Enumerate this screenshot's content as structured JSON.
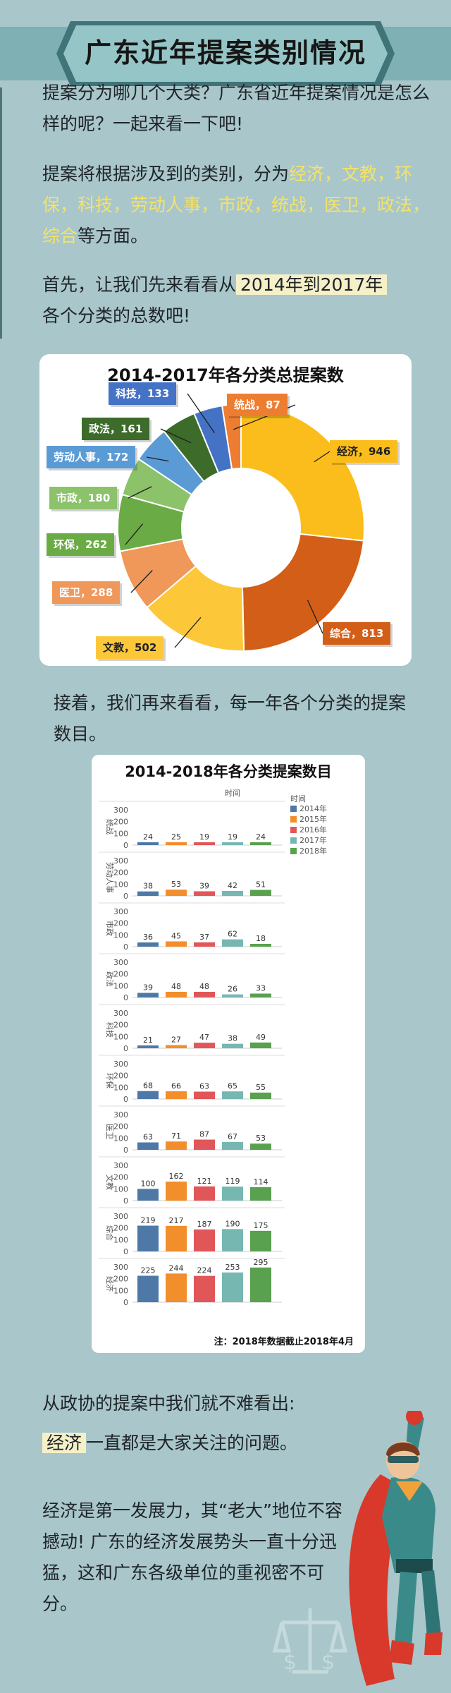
{
  "header": {
    "title": "广东近年提案类别情况"
  },
  "intro": {
    "p1": "提案分为哪几个大类？广东省近年提案情况是怎么样的呢？一起来看一下吧!",
    "p2_prefix": "提案将根据涉及到的类别，分为",
    "p2_categories": "经济，文教，环保，科技，劳动人事，市政，统战，医卫，政法，综合",
    "p2_suffix": "等方面。",
    "p3_a": "首先，让我们先来看看从",
    "p3_b": "2014年到2017年",
    "p3_c": "各个分类的总数吧!"
  },
  "mid": {
    "p": "接着，我们再来看看，每一年各个分类的提案数目。"
  },
  "outro": {
    "p1": "从政协的提案中我们就不难看出:",
    "p2_a": "经济",
    "p2_b": "一直都是大家关注的问题。",
    "p3": "经济是第一发展力，其“老大”地位不容撼动! 广东的经济发展势头一直十分迅猛，这和广东各级单位的重视密不可分。"
  },
  "chart_data": [
    {
      "type": "pie",
      "title": "2014-2017年各分类总提案数",
      "slices": [
        {
          "label": "经济",
          "value": 946,
          "color": "#fbbd1b",
          "tag": "经济，946"
        },
        {
          "label": "综合",
          "value": 813,
          "color": "#d25e17",
          "tag": "综合，813"
        },
        {
          "label": "文教",
          "value": 502,
          "color": "#fdc73a",
          "tag": "文教，502"
        },
        {
          "label": "医卫",
          "value": 288,
          "color": "#f0975a",
          "tag": "医卫，288"
        },
        {
          "label": "环保",
          "value": 262,
          "color": "#6aab46",
          "tag": "环保，262"
        },
        {
          "label": "市政",
          "value": 180,
          "color": "#8cc26a",
          "tag": "市政，180"
        },
        {
          "label": "劳动人事",
          "value": 172,
          "color": "#5a9bd5",
          "tag": "劳动人事，172"
        },
        {
          "label": "政法",
          "value": 161,
          "color": "#3c6b2a",
          "tag": "政法，161"
        },
        {
          "label": "科技",
          "value": 133,
          "color": "#4472c4",
          "tag": "科技，133"
        },
        {
          "label": "统战",
          "value": 87,
          "color": "#ed7d31",
          "tag": "统战，87"
        }
      ]
    },
    {
      "type": "bar",
      "title": "2014-2018年各分类提案数目",
      "xlabel": "时间",
      "legend_title": "时间",
      "legend_position": "right",
      "ylim": [
        0,
        300
      ],
      "yticks": [
        "300",
        "200",
        "100",
        "0"
      ],
      "series": [
        {
          "name": "2014年",
          "color": "#4e79a7"
        },
        {
          "name": "2015年",
          "color": "#f28e2b"
        },
        {
          "name": "2016年",
          "color": "#e15759"
        },
        {
          "name": "2017年",
          "color": "#76b7b2"
        },
        {
          "name": "2018年",
          "color": "#59a14f"
        }
      ],
      "categories": [
        "统战",
        "劳动人事",
        "市政",
        "政法",
        "科技",
        "环保",
        "医卫",
        "文教",
        "综合",
        "经济"
      ],
      "values": [
        [
          24,
          25,
          19,
          19,
          24
        ],
        [
          38,
          53,
          39,
          42,
          51
        ],
        [
          36,
          45,
          37,
          62,
          18
        ],
        [
          39,
          48,
          48,
          26,
          33
        ],
        [
          21,
          27,
          47,
          38,
          49
        ],
        [
          68,
          66,
          63,
          65,
          55
        ],
        [
          63,
          71,
          87,
          67,
          53
        ],
        [
          100,
          162,
          121,
          119,
          114
        ],
        [
          219,
          217,
          187,
          190,
          175
        ],
        [
          225,
          244,
          224,
          253,
          295
        ]
      ],
      "note": "注：2018年数据截止2018年4月"
    }
  ],
  "colors": {
    "background": "#a9c6ca",
    "banner": "#7fadb2",
    "highlight": "#f4e26a"
  }
}
